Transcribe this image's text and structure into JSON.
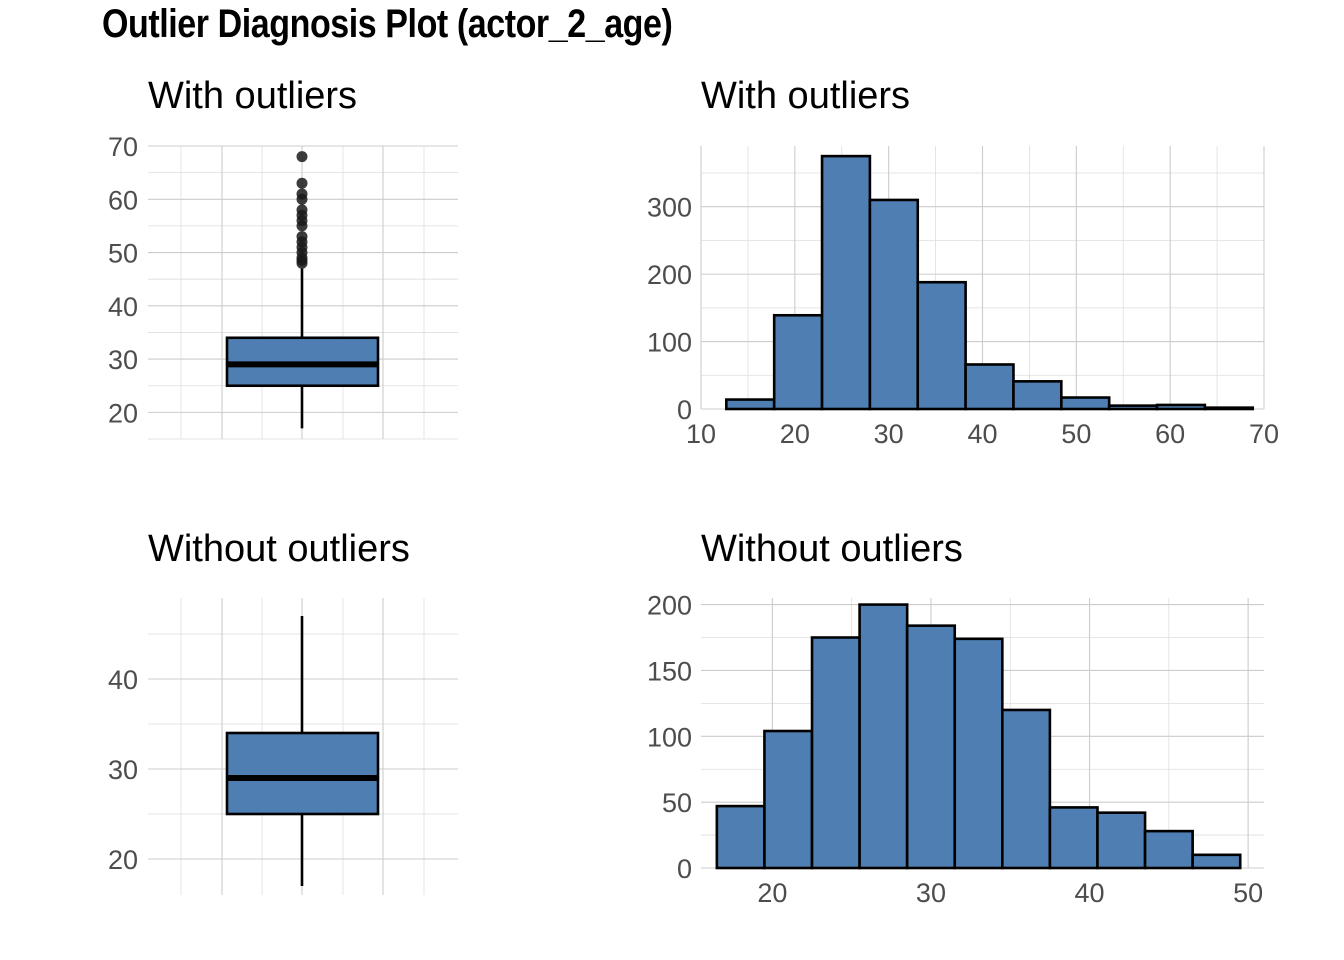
{
  "title": "Outlier Diagnosis Plot (actor_2_age)",
  "colors": {
    "fill": "#4f7fb2",
    "outline": "#000000",
    "grid": "#cccccc",
    "tick_text": "#4d4d4d"
  },
  "chart_data": [
    {
      "type": "box",
      "title": "With outliers",
      "ylim": [
        15,
        70
      ],
      "yticks": [
        20,
        30,
        40,
        50,
        60,
        70
      ],
      "whisker_low": 17,
      "q1": 25,
      "median": 29,
      "q3": 34,
      "whisker_high": 47,
      "outliers": [
        48,
        48.5,
        49,
        50,
        51,
        52,
        53,
        55,
        56,
        57,
        58,
        60,
        61,
        63,
        68
      ]
    },
    {
      "type": "bar",
      "title": "With outliers",
      "xlim": [
        10,
        70
      ],
      "ylim": [
        0,
        390
      ],
      "xticks": [
        10,
        20,
        30,
        40,
        50,
        60,
        70
      ],
      "yticks": [
        0,
        100,
        200,
        300
      ],
      "bins": [
        [
          12.7,
          17.8,
          14
        ],
        [
          17.8,
          22.9,
          139
        ],
        [
          22.9,
          28.0,
          375
        ],
        [
          28.0,
          33.1,
          310
        ],
        [
          33.1,
          38.2,
          188
        ],
        [
          38.2,
          43.3,
          66
        ],
        [
          43.3,
          48.4,
          41
        ],
        [
          48.4,
          53.5,
          17
        ],
        [
          53.5,
          58.6,
          5
        ],
        [
          58.6,
          63.7,
          6
        ],
        [
          63.7,
          68.8,
          2
        ]
      ]
    },
    {
      "type": "box",
      "title": "Without outliers",
      "ylim": [
        16,
        49
      ],
      "yticks": [
        20,
        30,
        40
      ],
      "whisker_low": 17,
      "q1": 25,
      "median": 29,
      "q3": 34,
      "whisker_high": 47,
      "outliers": []
    },
    {
      "type": "bar",
      "title": "Without outliers",
      "xlim": [
        15.5,
        51
      ],
      "ylim": [
        0,
        205
      ],
      "xticks": [
        20,
        30,
        40,
        50
      ],
      "yticks": [
        0,
        50,
        100,
        150,
        200
      ],
      "bins": [
        [
          16.5,
          19.5,
          47
        ],
        [
          19.5,
          22.5,
          104
        ],
        [
          22.5,
          25.5,
          175
        ],
        [
          25.5,
          28.5,
          200
        ],
        [
          28.5,
          31.5,
          184
        ],
        [
          31.5,
          34.5,
          174
        ],
        [
          34.5,
          37.5,
          120
        ],
        [
          37.5,
          40.5,
          46
        ],
        [
          40.5,
          43.5,
          42
        ],
        [
          43.5,
          46.5,
          28
        ],
        [
          46.5,
          49.5,
          10
        ]
      ]
    }
  ]
}
